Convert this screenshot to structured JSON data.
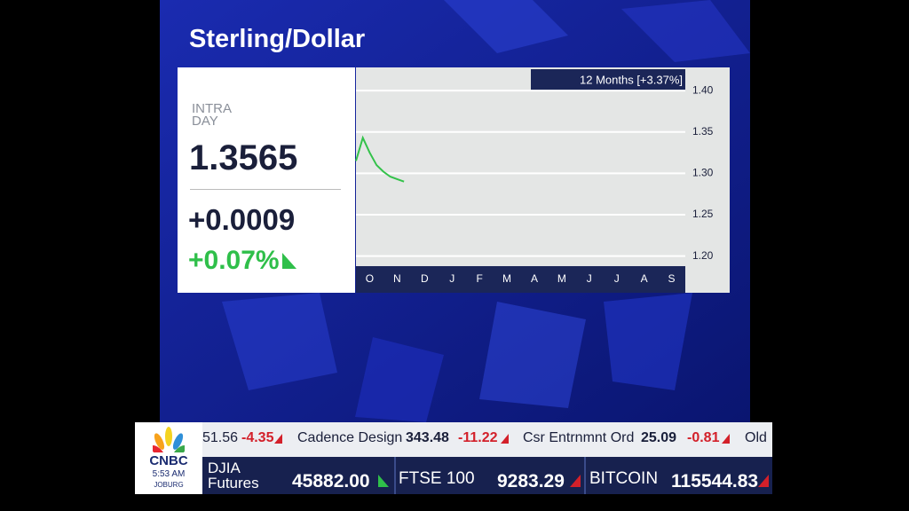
{
  "title": "Sterling/Dollar",
  "quote": {
    "label": [
      "INTRA",
      "DAY"
    ],
    "price": "1.3565",
    "change": "+0.0009",
    "percent": "+0.07%"
  },
  "chart_data": {
    "type": "line",
    "badge": "12 Months [+3.37%]",
    "categories": [
      null,
      null,
      "O",
      null,
      null,
      null,
      "N",
      null,
      null,
      null,
      "D",
      null,
      null,
      null,
      "J",
      null,
      null,
      null,
      "F",
      null,
      null,
      null,
      "M",
      null,
      null,
      null,
      "A",
      null,
      null,
      null,
      "M",
      null,
      null,
      null,
      "J",
      null,
      null,
      null,
      "J",
      null,
      null,
      null,
      "A",
      null,
      null,
      null,
      "S",
      null
    ],
    "series": [
      {
        "name": "Sterling/Dollar",
        "color": "#33c24a",
        "values": [
          1.315,
          1.343,
          1.325,
          1.31,
          1.302,
          1.296,
          1.293,
          1.29,
          null,
          null,
          null,
          null,
          null,
          null,
          null,
          null,
          null,
          null,
          null,
          null,
          null,
          null,
          null,
          null,
          null,
          null,
          null,
          null,
          null,
          null,
          null,
          null,
          null,
          null,
          null,
          null,
          null,
          null,
          null,
          null,
          null,
          null,
          null,
          null,
          null,
          null,
          null,
          null
        ]
      }
    ],
    "ylim": [
      1.19,
      1.428
    ],
    "yticks": [
      {
        "value": 1.2,
        "label": "1.20"
      },
      1.25,
      {
        "value": 1.3,
        "label": "1.30"
      },
      1.35,
      {
        "value": 1.4,
        "label": "1.40"
      }
    ],
    "grid": true
  },
  "ticker": {
    "top": [
      {
        "name": null,
        "price": "51.56",
        "change": "-4.35"
      },
      {
        "name": "Cadence Design",
        "price": "343.48",
        "change": "-11.22"
      },
      {
        "name": "Csr Entrnmnt Ord",
        "price": "25.09",
        "change": "-0.81"
      },
      {
        "name": "Old",
        "price": null,
        "change": null
      }
    ],
    "bottom": [
      {
        "name": [
          "DJIA",
          "Futures"
        ],
        "price": "45882.00"
      },
      {
        "name": "FTSE 100",
        "price": "9283.29"
      },
      {
        "name": "BITCOIN",
        "price": "115544.83"
      }
    ],
    "logo": "CNBC",
    "time": "5:53 AM",
    "city": "JOBURG"
  }
}
